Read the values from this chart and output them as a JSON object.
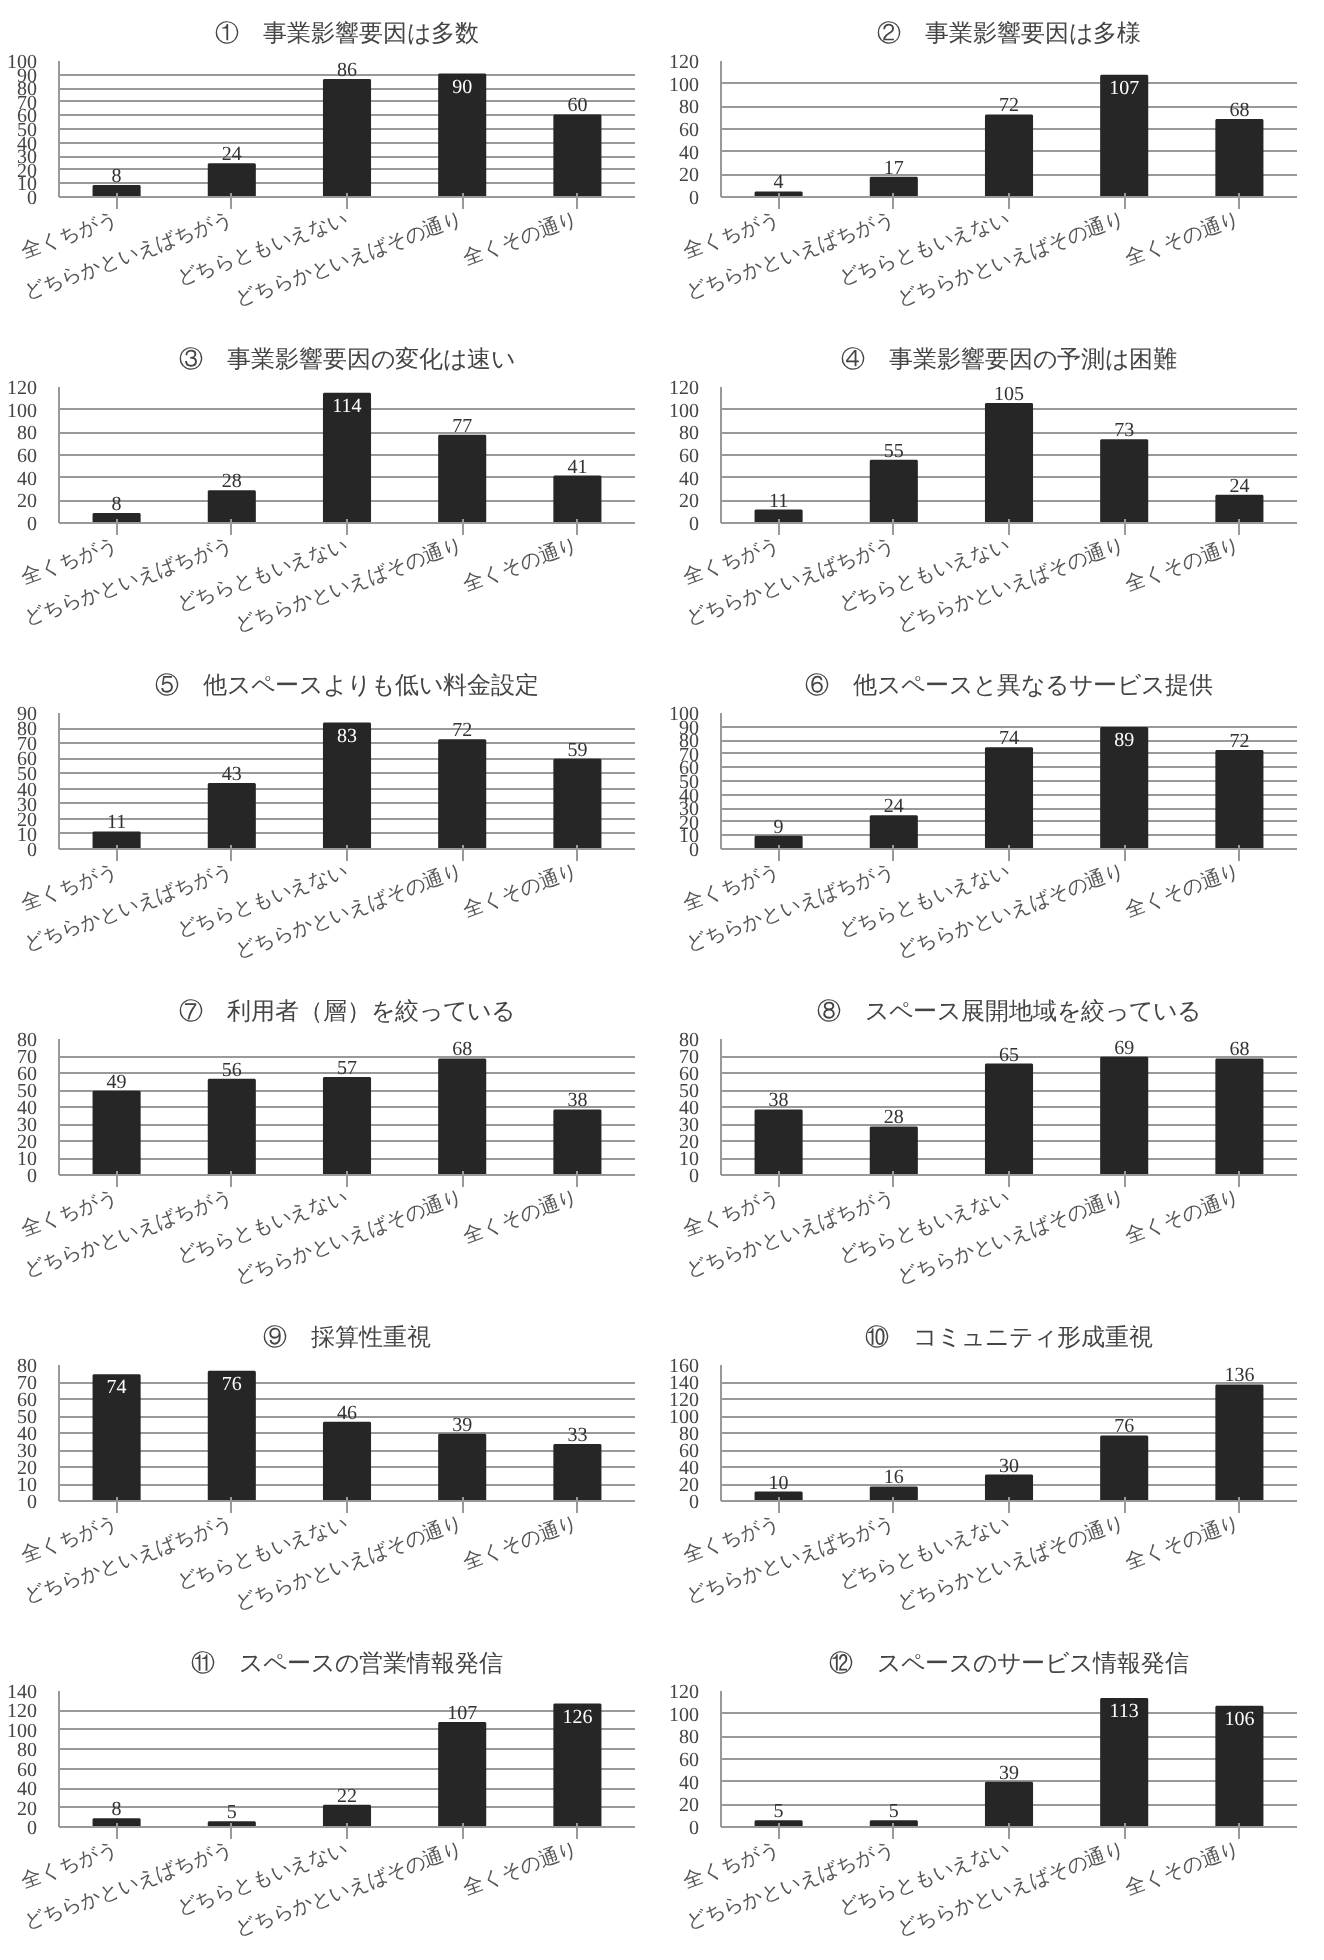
{
  "chart_data": [
    {
      "type": "bar",
      "title": "①　事業影響要因は多数",
      "categories": [
        "全くちがう",
        "どちらかといえばちがう",
        "どちらともいえない",
        "どちらかといえばその通り",
        "全くその通り"
      ],
      "values": [
        8,
        24,
        86,
        90,
        60
      ],
      "color": "#262626",
      "ylim": [
        0,
        100
      ],
      "yticks": [
        0,
        10,
        20,
        30,
        40,
        50,
        60,
        70,
        80,
        90,
        100
      ],
      "grid": "y",
      "data_labels": true
    },
    {
      "type": "bar",
      "title": "②　事業影響要因は多様",
      "categories": [
        "全くちがう",
        "どちらかといえばちがう",
        "どちらともいえない",
        "どちらかといえばその通り",
        "全くその通り"
      ],
      "values": [
        4,
        17,
        72,
        107,
        68
      ],
      "color": "#262626",
      "ylim": [
        0,
        120
      ],
      "yticks": [
        0,
        20,
        40,
        60,
        80,
        100,
        120
      ],
      "grid": "y",
      "data_labels": true
    },
    {
      "type": "bar",
      "title": "③　事業影響要因の変化は速い",
      "categories": [
        "全くちがう",
        "どちらかといえばちがう",
        "どちらともいえない",
        "どちらかといえばその通り",
        "全くその通り"
      ],
      "values": [
        8,
        28,
        114,
        77,
        41
      ],
      "color": "#262626",
      "ylim": [
        0,
        120
      ],
      "yticks": [
        0,
        20,
        40,
        60,
        80,
        100,
        120
      ],
      "grid": "y",
      "data_labels": true
    },
    {
      "type": "bar",
      "title": "④　事業影響要因の予測は困難",
      "categories": [
        "全くちがう",
        "どちらかといえばちがう",
        "どちらともいえない",
        "どちらかといえばその通り",
        "全くその通り"
      ],
      "values": [
        11,
        55,
        105,
        73,
        24
      ],
      "color": "#262626",
      "ylim": [
        0,
        120
      ],
      "yticks": [
        0,
        20,
        40,
        60,
        80,
        100,
        120
      ],
      "grid": "y",
      "data_labels": true
    },
    {
      "type": "bar",
      "title": "⑤　他スペースよりも低い料金設定",
      "categories": [
        "全くちがう",
        "どちらかといえばちがう",
        "どちらともいえない",
        "どちらかといえばその通り",
        "全くその通り"
      ],
      "values": [
        11,
        43,
        83,
        72,
        59
      ],
      "color": "#262626",
      "ylim": [
        0,
        90
      ],
      "yticks": [
        0,
        10,
        20,
        30,
        40,
        50,
        60,
        70,
        80,
        90
      ],
      "grid": "y",
      "data_labels": true
    },
    {
      "type": "bar",
      "title": "⑥　他スペースと異なるサービス提供",
      "categories": [
        "全くちがう",
        "どちらかといえばちがう",
        "どちらともいえない",
        "どちらかといえばその通り",
        "全くその通り"
      ],
      "values": [
        9,
        24,
        74,
        89,
        72
      ],
      "color": "#262626",
      "ylim": [
        0,
        100
      ],
      "yticks": [
        0,
        10,
        20,
        30,
        40,
        50,
        60,
        70,
        80,
        90,
        100
      ],
      "grid": "y",
      "data_labels": true
    },
    {
      "type": "bar",
      "title": "⑦　利用者（層）を絞っている",
      "categories": [
        "全くちがう",
        "どちらかといえばちがう",
        "どちらともいえない",
        "どちらかといえばその通り",
        "全くその通り"
      ],
      "values": [
        49,
        56,
        57,
        68,
        38
      ],
      "color": "#262626",
      "ylim": [
        0,
        80
      ],
      "yticks": [
        0,
        10,
        20,
        30,
        40,
        50,
        60,
        70,
        80
      ],
      "grid": "y",
      "data_labels": true
    },
    {
      "type": "bar",
      "title": "⑧　スペース展開地域を絞っている",
      "categories": [
        "全くちがう",
        "どちらかといえばちがう",
        "どちらともいえない",
        "どちらかといえばその通り",
        "全くその通り"
      ],
      "values": [
        38,
        28,
        65,
        69,
        68
      ],
      "color": "#262626",
      "ylim": [
        0,
        80
      ],
      "yticks": [
        0,
        10,
        20,
        30,
        40,
        50,
        60,
        70,
        80
      ],
      "grid": "y",
      "data_labels": true
    },
    {
      "type": "bar",
      "title": "⑨　採算性重視",
      "categories": [
        "全くちがう",
        "どちらかといえばちがう",
        "どちらともいえない",
        "どちらかといえばその通り",
        "全くその通り"
      ],
      "values": [
        74,
        76,
        46,
        39,
        33
      ],
      "color": "#262626",
      "ylim": [
        0,
        80
      ],
      "yticks": [
        0,
        10,
        20,
        30,
        40,
        50,
        60,
        70,
        80
      ],
      "grid": "y",
      "data_labels": true
    },
    {
      "type": "bar",
      "title": "⑩　コミュニティ形成重視",
      "categories": [
        "全くちがう",
        "どちらかといえばちがう",
        "どちらともいえない",
        "どちらかといえばその通り",
        "全くその通り"
      ],
      "values": [
        10,
        16,
        30,
        76,
        136
      ],
      "color": "#262626",
      "ylim": [
        0,
        160
      ],
      "yticks": [
        0,
        20,
        40,
        60,
        80,
        100,
        120,
        140,
        160
      ],
      "grid": "y",
      "data_labels": true
    },
    {
      "type": "bar",
      "title": "⑪　スペースの営業情報発信",
      "categories": [
        "全くちがう",
        "どちらかといえばちがう",
        "どちらともいえない",
        "どちらかといえばその通り",
        "全くその通り"
      ],
      "values": [
        8,
        5,
        22,
        107,
        126
      ],
      "color": "#262626",
      "ylim": [
        0,
        140
      ],
      "yticks": [
        0,
        20,
        40,
        60,
        80,
        100,
        120,
        140
      ],
      "grid": "y",
      "data_labels": true
    },
    {
      "type": "bar",
      "title": "⑫　スペースのサービス情報発信",
      "categories": [
        "全くちがう",
        "どちらかといえばちがう",
        "どちらともいえない",
        "どちらかといえばその通り",
        "全くその通り"
      ],
      "values": [
        5,
        5,
        39,
        113,
        106
      ],
      "color": "#262626",
      "ylim": [
        0,
        120
      ],
      "yticks": [
        0,
        20,
        40,
        60,
        80,
        100,
        120
      ],
      "grid": "y",
      "data_labels": true
    }
  ]
}
